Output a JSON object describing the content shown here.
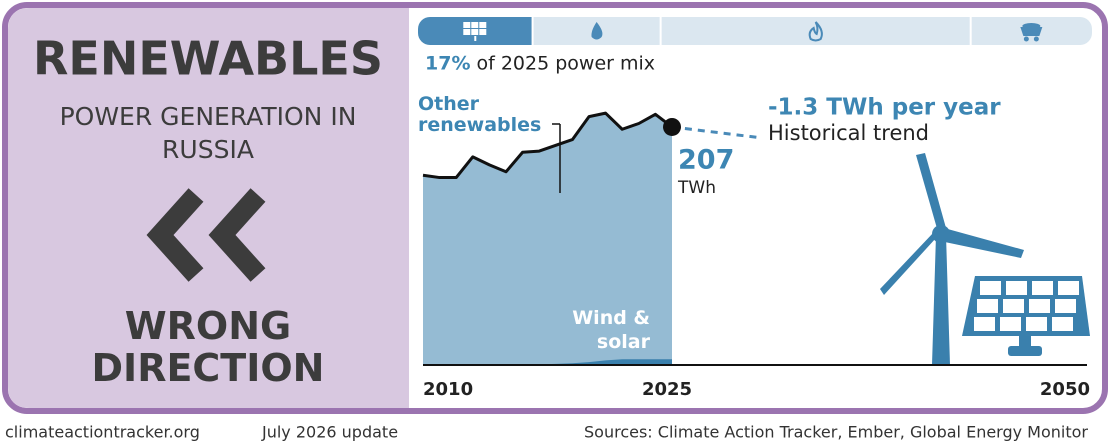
{
  "header": {
    "title": "RENEWABLES",
    "subtitle": "POWER GENERATION IN RUSSIA",
    "verdict": "WRONG DIRECTION"
  },
  "power_mix": {
    "shares": [
      17,
      19,
      46,
      18
    ],
    "value_labels": [
      "17%",
      null,
      null,
      null
    ],
    "caption": "of 2025 power mix"
  },
  "chart_data": {
    "type": "area",
    "x": [
      2010,
      2011,
      2012,
      2013,
      2014,
      2015,
      2016,
      2017,
      2018,
      2019,
      2020,
      2021,
      2022,
      2023,
      2024,
      2025
    ],
    "series": [
      {
        "name": "Other renewables",
        "color": "#95bbd3",
        "values": [
          165,
          163,
          163,
          181,
          174,
          168,
          185,
          186,
          191,
          196,
          216,
          219,
          205,
          210,
          218,
          207
        ]
      },
      {
        "name": "Wind & solar",
        "color": "#3a80ad",
        "values": [
          0,
          0,
          0,
          0,
          0.1,
          0.2,
          0.3,
          0.5,
          1,
          1.5,
          2.5,
          4,
          5,
          5,
          5,
          5
        ]
      }
    ],
    "unit": "TWh",
    "trend_label": "-1.3 TWh per year",
    "trend_caption": "Historical trend",
    "xlim": [
      2010,
      2050
    ],
    "xticks": [
      2010,
      2025,
      2050
    ],
    "ylim": [
      0,
      240
    ]
  },
  "footer": {
    "site": "climateactiontracker.org",
    "date": "July 2026 update",
    "sources": "Sources: Climate Action Tracker, Ember, Global Energy Monitor"
  }
}
